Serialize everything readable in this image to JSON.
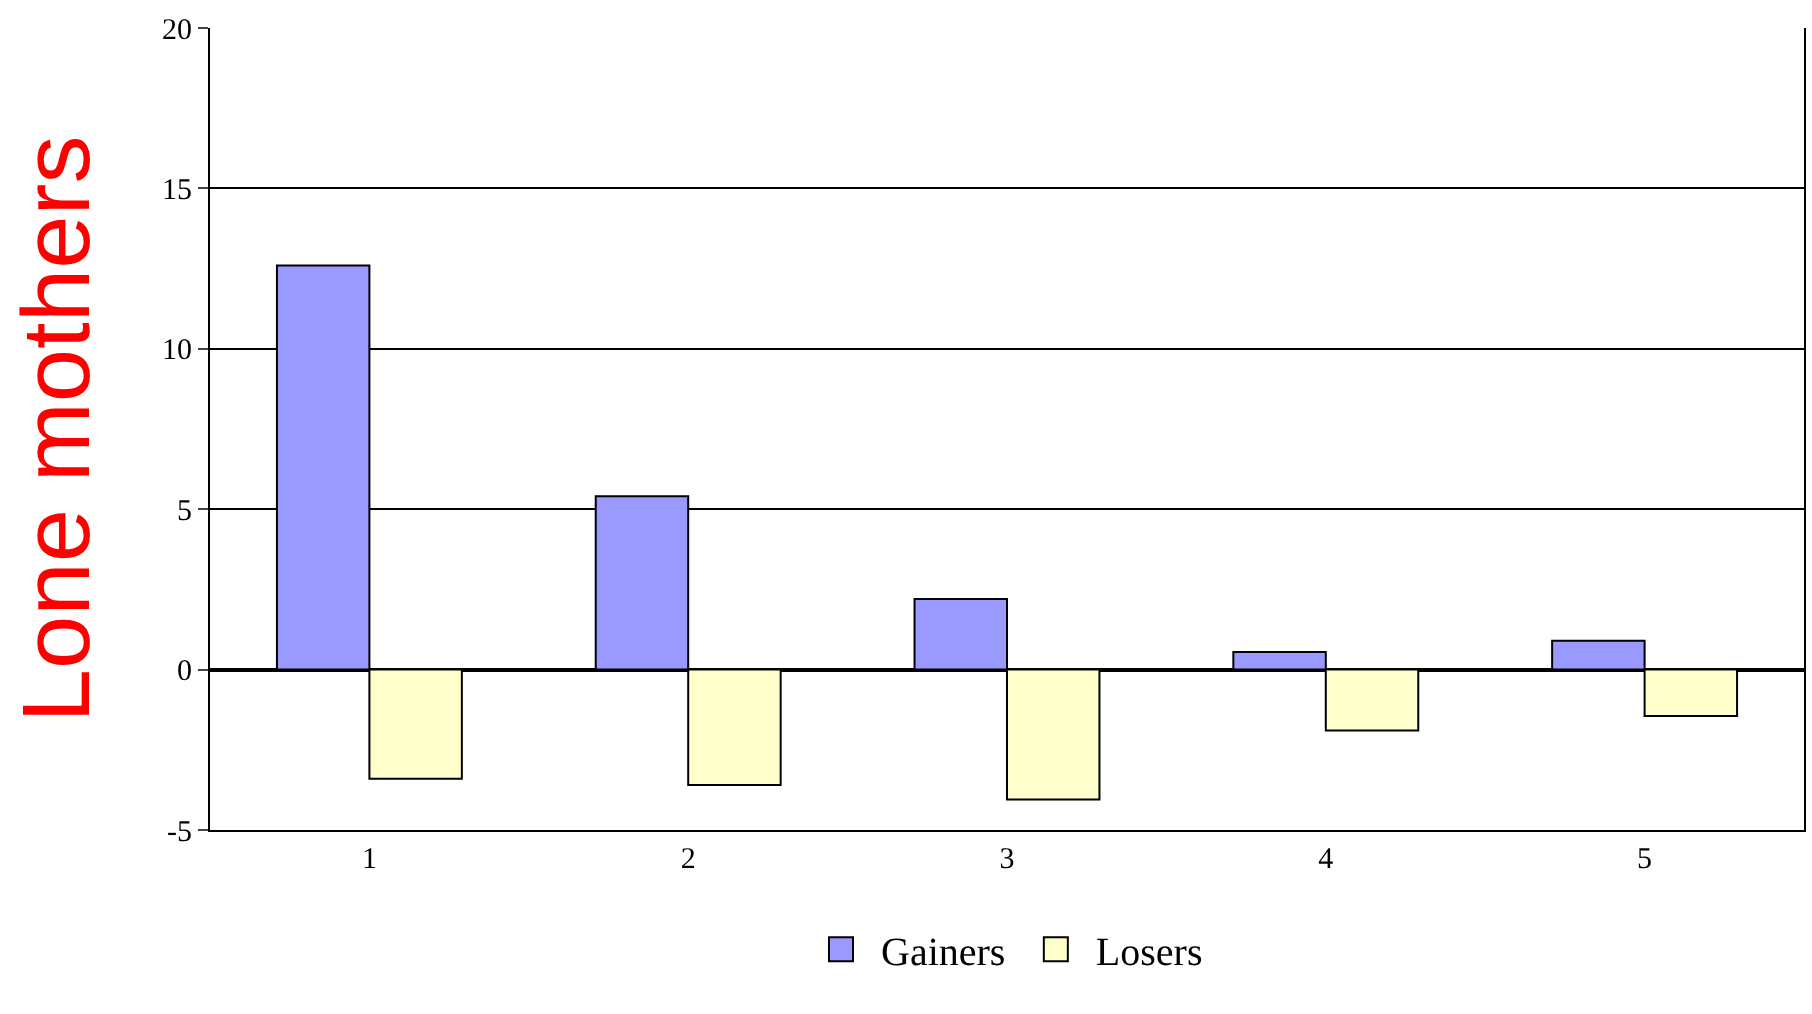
{
  "chart_data": {
    "type": "bar",
    "ylabel": "Lone mothers",
    "categories": [
      "1",
      "2",
      "3",
      "4",
      "5"
    ],
    "series": [
      {
        "name": "Gainers",
        "color": "#9999ff",
        "values": [
          12.6,
          5.4,
          2.2,
          0.55,
          0.9
        ]
      },
      {
        "name": "Losers",
        "color": "#ffffcc",
        "values": [
          -3.4,
          -3.6,
          -4.05,
          -1.9,
          -1.45
        ]
      }
    ],
    "ylim": [
      -5,
      20
    ],
    "yticks": [
      -5,
      0,
      5,
      10,
      15,
      20
    ],
    "grid": "y",
    "legend": "bottom"
  }
}
